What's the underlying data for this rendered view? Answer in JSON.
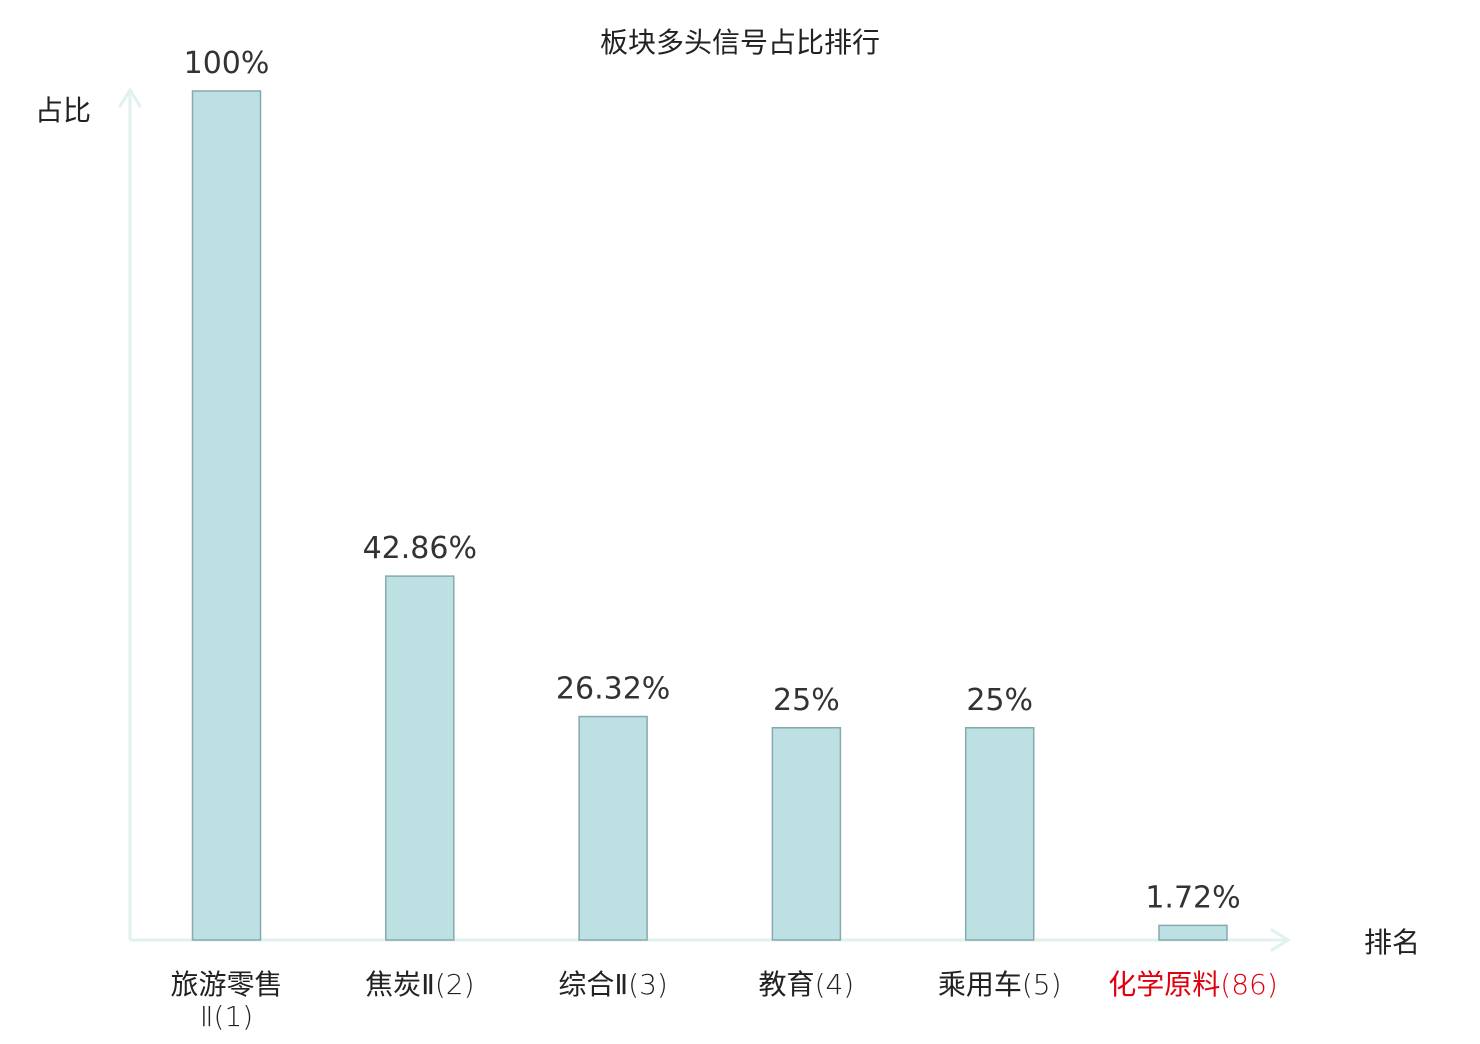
{
  "chart_data": {
    "type": "bar",
    "title": "板块多头信号占比排行",
    "ylabel": "占比",
    "xlabel": "排名",
    "categories": [
      {
        "name": "旅游零售Ⅱ",
        "rank": "(1)",
        "highlight": false
      },
      {
        "name": "焦炭Ⅱ",
        "rank": "(2)",
        "highlight": false
      },
      {
        "name": "综合Ⅱ",
        "rank": "(3)",
        "highlight": false
      },
      {
        "name": "教育",
        "rank": "(4)",
        "highlight": false
      },
      {
        "name": "乘用车",
        "rank": "(5)",
        "highlight": false
      },
      {
        "name": "化学原料",
        "rank": "(86)",
        "highlight": true
      }
    ],
    "values": [
      100,
      42.86,
      26.32,
      25,
      25,
      1.72
    ],
    "data_labels": [
      "100%",
      "42.86%",
      "26.32%",
      "25%",
      "25%",
      "1.72%"
    ],
    "ylim": [
      0,
      100
    ],
    "grid": false,
    "legend": "none"
  },
  "colors": {
    "bar_fill": "#bde0e3",
    "bar_stroke": "#86a9ad",
    "axis": "#dff2ef",
    "text": "#222222",
    "label_text": "#333333",
    "highlight": "#e0000f"
  }
}
